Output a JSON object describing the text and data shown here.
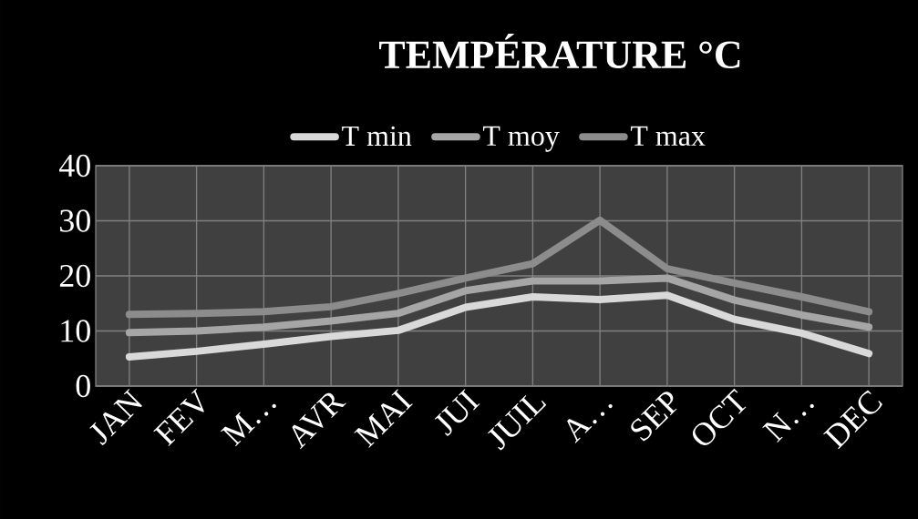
{
  "chart_data": {
    "type": "line",
    "title": "TEMPÉRATURE °C",
    "categories": [
      "JAN",
      "FEV",
      "M…",
      "AVR",
      "MAI",
      "JUI",
      "JUIL",
      "A…",
      "SEP",
      "OCT",
      "N…",
      "DEC"
    ],
    "series": [
      {
        "name": "T min",
        "color": "#d9d9d9",
        "values": [
          5.3,
          6.3,
          7.6,
          9.0,
          10.1,
          14.3,
          16.2,
          15.7,
          16.5,
          12.1,
          9.6,
          5.9
        ]
      },
      {
        "name": "T moy",
        "color": "#a6a6a6",
        "values": [
          9.7,
          10.0,
          10.7,
          11.8,
          13.2,
          17.3,
          19.1,
          19.1,
          19.6,
          15.6,
          12.9,
          10.7
        ]
      },
      {
        "name": "T max",
        "color": "#8c8c8c",
        "values": [
          13.0,
          13.2,
          13.5,
          14.4,
          16.8,
          19.6,
          22.2,
          30.1,
          21.3,
          18.7,
          16.2,
          13.5
        ]
      }
    ],
    "ylim": [
      0,
      40
    ],
    "yticks": [
      0,
      10,
      20,
      30,
      40
    ],
    "grid": true,
    "legend": "top",
    "marker": "none",
    "line_style": "solid"
  }
}
